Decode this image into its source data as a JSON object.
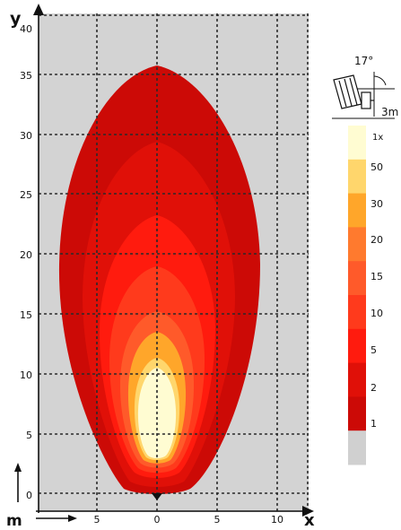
{
  "plot": {
    "y_label": "y",
    "x_label": "x",
    "unit_label": "m",
    "y_ticks": [
      "0",
      "5",
      "10",
      "15",
      "20",
      "25",
      "30",
      "35",
      "40"
    ],
    "x_ticks": [
      "5",
      "0",
      "5",
      "10"
    ]
  },
  "mount": {
    "angle_label": "17°",
    "height_label": "3m"
  },
  "legend": {
    "labels": [
      "1x",
      "50",
      "30",
      "20",
      "15",
      "10",
      "5",
      "2",
      "1",
      ""
    ],
    "colors": [
      "#FFFCD2",
      "#FFD66C",
      "#FFA62A",
      "#FF7A2E",
      "#FF5A2A",
      "#FF3A1C",
      "#FF1B0E",
      "#E01008",
      "#CC0A06",
      "#D0D0D0"
    ]
  },
  "colors": {
    "background": "#D3D3D3",
    "grid": "#2A2A2A"
  }
}
